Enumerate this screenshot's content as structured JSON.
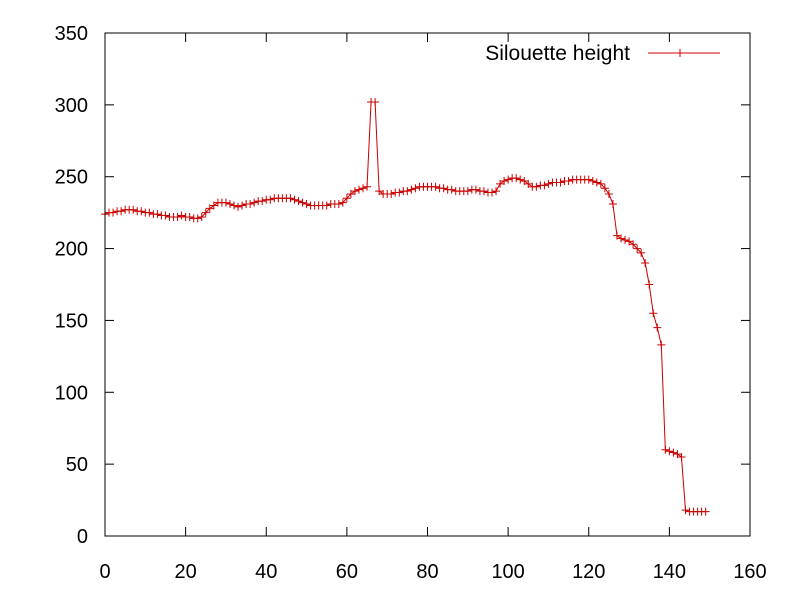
{
  "chart_data": {
    "type": "line",
    "title": "",
    "xlabel": "",
    "ylabel": "",
    "xlim": [
      0,
      160
    ],
    "ylim": [
      0,
      350
    ],
    "x_ticks": [
      0,
      20,
      40,
      60,
      80,
      100,
      120,
      140,
      160
    ],
    "y_ticks": [
      0,
      50,
      100,
      150,
      200,
      250,
      300,
      350
    ],
    "grid": false,
    "legend": "top-right",
    "series": [
      {
        "name": "Silouette height",
        "color": "#cc0000",
        "marker": "plus",
        "x": [
          0,
          1,
          2,
          3,
          4,
          5,
          6,
          7,
          8,
          9,
          10,
          11,
          12,
          13,
          14,
          15,
          16,
          17,
          18,
          19,
          20,
          21,
          22,
          23,
          24,
          25,
          26,
          27,
          28,
          29,
          30,
          31,
          32,
          33,
          34,
          35,
          36,
          37,
          38,
          39,
          40,
          41,
          42,
          43,
          44,
          45,
          46,
          47,
          48,
          49,
          50,
          51,
          52,
          53,
          54,
          55,
          56,
          57,
          58,
          59,
          60,
          61,
          62,
          63,
          64,
          65,
          66,
          67,
          68,
          69,
          70,
          71,
          72,
          73,
          74,
          75,
          76,
          77,
          78,
          79,
          80,
          81,
          82,
          83,
          84,
          85,
          86,
          87,
          88,
          89,
          90,
          91,
          92,
          93,
          94,
          95,
          96,
          97,
          98,
          99,
          100,
          101,
          102,
          103,
          104,
          105,
          106,
          107,
          108,
          109,
          110,
          111,
          112,
          113,
          114,
          115,
          116,
          117,
          118,
          119,
          120,
          121,
          122,
          123,
          124,
          125,
          126,
          127,
          128,
          129,
          130,
          131,
          132,
          133,
          134,
          135,
          136,
          137,
          138,
          139,
          140,
          141,
          142,
          143,
          144,
          145,
          146,
          147,
          148,
          149
        ],
        "y": [
          224,
          225,
          225,
          226,
          226,
          227,
          227,
          227,
          226,
          226,
          225,
          225,
          224,
          224,
          223,
          223,
          222,
          222,
          222,
          223,
          222,
          222,
          221,
          221,
          222,
          225,
          228,
          230,
          232,
          232,
          232,
          231,
          230,
          229,
          230,
          231,
          231,
          232,
          233,
          233,
          234,
          234,
          235,
          235,
          235,
          235,
          235,
          234,
          233,
          232,
          231,
          230,
          230,
          230,
          230,
          230,
          231,
          231,
          231,
          232,
          235,
          238,
          240,
          241,
          242,
          243,
          302,
          302,
          240,
          238,
          238,
          238,
          239,
          239,
          240,
          240,
          241,
          242,
          243,
          243,
          243,
          243,
          243,
          242,
          242,
          241,
          241,
          240,
          240,
          240,
          240,
          241,
          241,
          240,
          240,
          239,
          239,
          240,
          245,
          247,
          248,
          249,
          249,
          248,
          247,
          245,
          243,
          243,
          244,
          244,
          245,
          246,
          246,
          246,
          247,
          247,
          248,
          248,
          248,
          248,
          248,
          247,
          246,
          245,
          242,
          238,
          231,
          209,
          207,
          206,
          205,
          203,
          200,
          197,
          190,
          175,
          155,
          145,
          133,
          60,
          59,
          58,
          57,
          55,
          18,
          17,
          17,
          17,
          17,
          17
        ]
      }
    ]
  }
}
